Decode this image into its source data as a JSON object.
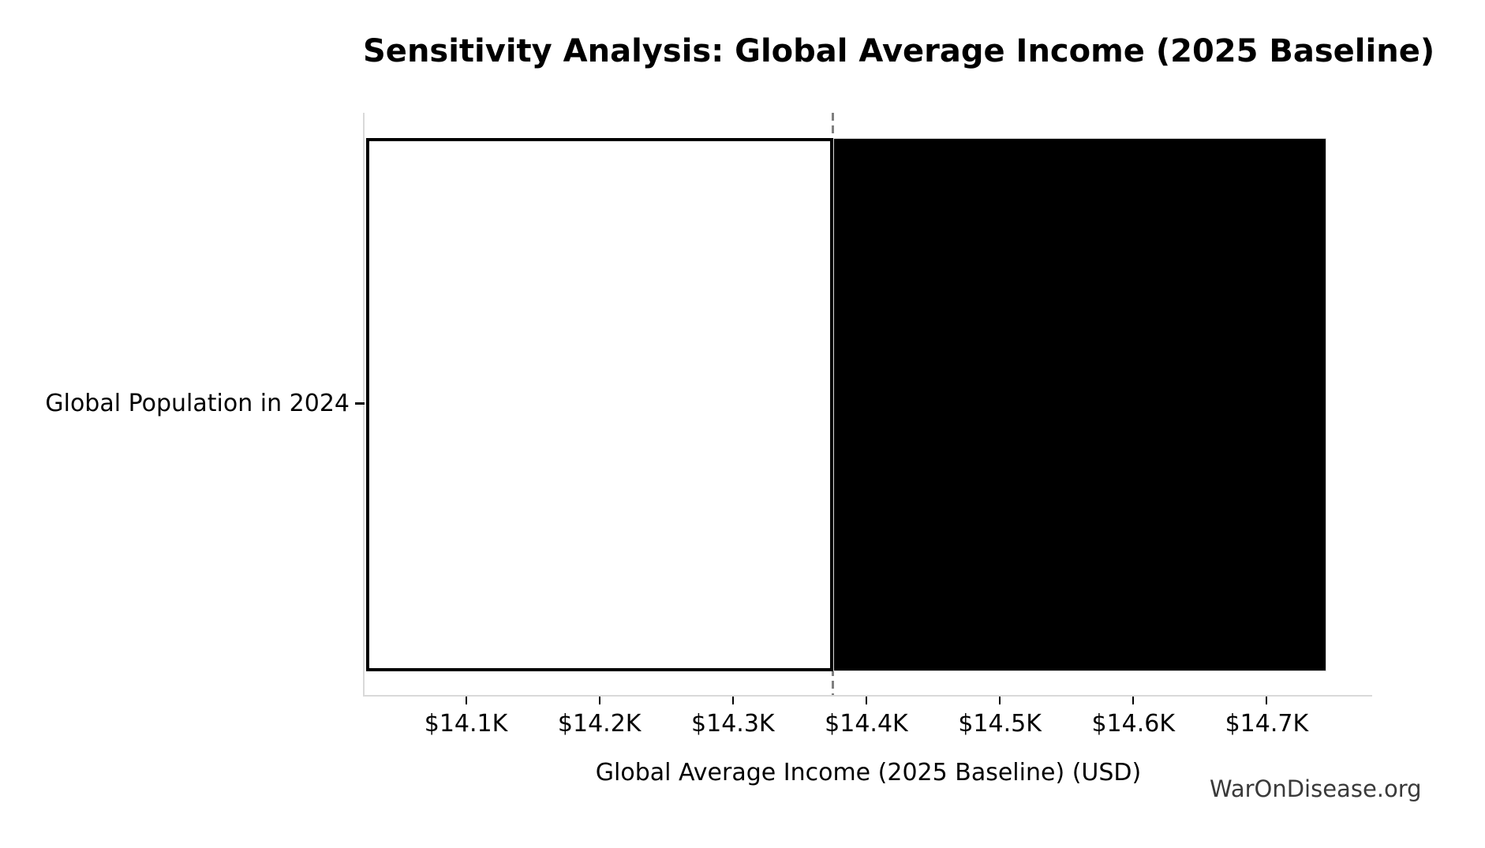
{
  "watermark": "WarOnDisease.org",
  "colors": {
    "spine": "#d9d9d9",
    "tick": "#000000",
    "text": "#000000",
    "watermark": "#3a3a3a"
  },
  "chart_data": {
    "type": "bar",
    "subtype": "tornado-sensitivity",
    "orientation": "horizontal",
    "title": "Sensitivity Analysis: Global Average Income (2025 Baseline)",
    "xlabel": "Global Average Income (2025 Baseline) (USD)",
    "ylabel": "",
    "categories": [
      "Global Population in 2024"
    ],
    "xlim": [
      14024,
      14779
    ],
    "x_ticks": [
      {
        "value": 14100,
        "label": "$14.1K"
      },
      {
        "value": 14200,
        "label": "$14.2K"
      },
      {
        "value": 14300,
        "label": "$14.3K"
      },
      {
        "value": 14400,
        "label": "$14.4K"
      },
      {
        "value": 14500,
        "label": "$14.5K"
      },
      {
        "value": 14600,
        "label": "$14.6K"
      },
      {
        "value": 14700,
        "label": "$14.7K"
      }
    ],
    "baseline": {
      "value": 14375,
      "color": "#808080",
      "style": "dashed"
    },
    "bars": [
      {
        "category": "Global Population in 2024",
        "low": 14025,
        "baseline": 14375,
        "high": 14745,
        "segments": [
          {
            "name": "low-to-baseline",
            "from": 14025,
            "to": 14375,
            "fill": "#ffffff",
            "edge": "#000000",
            "edge_width": 4
          },
          {
            "name": "baseline-to-high",
            "from": 14375,
            "to": 14745,
            "fill": "#000000",
            "edge": "#dcdcdc",
            "edge_width": 1.5
          }
        ]
      }
    ],
    "grid": false,
    "legend": false
  }
}
